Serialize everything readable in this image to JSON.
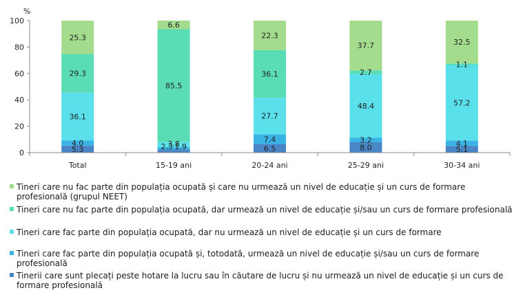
{
  "chart_data": {
    "type": "bar",
    "stacked": true,
    "unit_label": "%",
    "ylim": [
      0,
      100
    ],
    "yticks": [
      0,
      20,
      40,
      60,
      80,
      100
    ],
    "grid": false,
    "legend_position": "bottom",
    "categories": [
      "Total",
      "15-19 ani",
      "20-24 ani",
      "25-29 ani",
      "30-34 ani"
    ],
    "series": [
      {
        "name": "Tinerii care sunt plecați peste hotare la lucru sau în căutare de lucru și nu urmează un nivel de educație și un curs de formare profesională",
        "color": "#4a86c6",
        "values": [
          5.3,
          2.3,
          6.5,
          8.0,
          5.1
        ],
        "labels": [
          "5.3",
          "2.3",
          "6.5",
          "8.0",
          "5.1"
        ]
      },
      {
        "name": "Tineri care fac parte din populația ocupată și, totodată, urmează un nivel de educație și/sau un curs de formare profesională",
        "color": "#3ab4e6",
        "values": [
          4.0,
          1.9,
          7.4,
          3.2,
          4.1
        ],
        "labels": [
          "4.0",
          "1.9",
          "7.4",
          "3.2",
          "4.1"
        ]
      },
      {
        "name": "Tineri care fac parte din populația ocupată, dar nu urmează un nivel de educație și un curs de formare",
        "color": "#5ae0ea",
        "values": [
          36.1,
          3.8,
          27.7,
          48.4,
          57.2
        ],
        "labels": [
          "36.1",
          "3.8",
          "27.7",
          "48.4",
          "57.2"
        ]
      },
      {
        "name": "Tineri care nu fac parte din populația ocupată, dar urmează un nivel de educație și/sau un curs de formare profesională",
        "color": "#5adcb4",
        "values": [
          29.3,
          85.5,
          36.1,
          2.7,
          1.1
        ],
        "labels": [
          "29.3",
          "85.5",
          "36.1",
          "2.7",
          "1.1"
        ]
      },
      {
        "name": "Tineri care nu fac parte din populația ocupată și care nu urmează un nivel de educație și un curs de formare profesională (grupul NEET)",
        "color": "#a3dc8c",
        "values": [
          25.3,
          6.6,
          22.3,
          37.7,
          32.5
        ],
        "labels": [
          "25.3",
          "6.6",
          "22.3",
          "37.7",
          "32.5"
        ]
      }
    ]
  }
}
